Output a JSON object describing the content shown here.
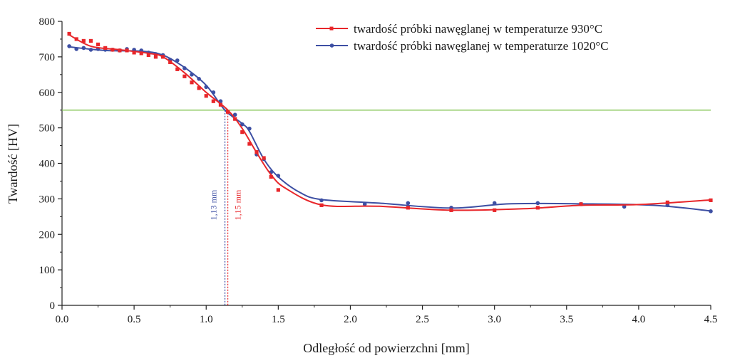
{
  "chart_data": {
    "type": "line",
    "title": "",
    "xlabel": "Odległość od powierzchni [mm]",
    "ylabel": "Twardość [HV]",
    "xlim": [
      0.0,
      4.5
    ],
    "ylim": [
      0,
      800
    ],
    "xticks": [
      "0.0",
      "0.5",
      "1.0",
      "1.5",
      "2.0",
      "2.5",
      "3.0",
      "3.5",
      "4.0",
      "4.5"
    ],
    "yticks": [
      "0",
      "100",
      "200",
      "300",
      "400",
      "500",
      "600",
      "700",
      "800"
    ],
    "grid": false,
    "legend_position": "top-right",
    "reference_line": {
      "y": 550,
      "color": "#7cc24a"
    },
    "series": [
      {
        "name": "twardość próbki nawęglanej w temperaturze 930°C",
        "color": "#e8262a",
        "marker": "square",
        "points": [
          [
            0.05,
            765
          ],
          [
            0.1,
            750
          ],
          [
            0.15,
            745
          ],
          [
            0.2,
            745
          ],
          [
            0.25,
            735
          ],
          [
            0.3,
            725
          ],
          [
            0.35,
            720
          ],
          [
            0.4,
            718
          ],
          [
            0.45,
            718
          ],
          [
            0.5,
            712
          ],
          [
            0.55,
            710
          ],
          [
            0.6,
            705
          ],
          [
            0.65,
            700
          ],
          [
            0.7,
            700
          ],
          [
            0.75,
            685
          ],
          [
            0.8,
            665
          ],
          [
            0.85,
            645
          ],
          [
            0.9,
            628
          ],
          [
            0.95,
            612
          ],
          [
            1.0,
            590
          ],
          [
            1.05,
            575
          ],
          [
            1.1,
            565
          ],
          [
            1.15,
            545
          ],
          [
            1.2,
            525
          ],
          [
            1.25,
            488
          ],
          [
            1.3,
            455
          ],
          [
            1.35,
            432
          ],
          [
            1.4,
            415
          ],
          [
            1.45,
            362
          ],
          [
            1.5,
            325
          ],
          [
            1.8,
            282
          ],
          [
            2.4,
            275
          ],
          [
            2.7,
            268
          ],
          [
            3.0,
            268
          ],
          [
            3.3,
            275
          ],
          [
            3.6,
            285
          ],
          [
            4.2,
            290
          ],
          [
            4.5,
            296
          ]
        ],
        "curve": [
          [
            0.05,
            762
          ],
          [
            0.2,
            730
          ],
          [
            0.4,
            720
          ],
          [
            0.6,
            710
          ],
          [
            0.7,
            700
          ],
          [
            0.85,
            655
          ],
          [
            1.0,
            600
          ],
          [
            1.15,
            550
          ],
          [
            1.25,
            498
          ],
          [
            1.35,
            430
          ],
          [
            1.45,
            368
          ],
          [
            1.55,
            330
          ],
          [
            1.8,
            283
          ],
          [
            2.2,
            279
          ],
          [
            2.7,
            268
          ],
          [
            3.2,
            272
          ],
          [
            3.6,
            282
          ],
          [
            4.0,
            284
          ],
          [
            4.5,
            297
          ]
        ],
        "annotation": {
          "text": "1,15 mm",
          "x": 1.15
        }
      },
      {
        "name": "twardość próbki nawęglanej w temperaturze 1020°C",
        "color": "#3d4fa3",
        "marker": "circle",
        "points": [
          [
            0.05,
            730
          ],
          [
            0.1,
            722
          ],
          [
            0.15,
            725
          ],
          [
            0.2,
            720
          ],
          [
            0.25,
            722
          ],
          [
            0.3,
            720
          ],
          [
            0.35,
            720
          ],
          [
            0.4,
            718
          ],
          [
            0.45,
            722
          ],
          [
            0.5,
            720
          ],
          [
            0.55,
            718
          ],
          [
            0.6,
            712
          ],
          [
            0.65,
            708
          ],
          [
            0.7,
            705
          ],
          [
            0.75,
            692
          ],
          [
            0.8,
            690
          ],
          [
            0.85,
            668
          ],
          [
            0.9,
            650
          ],
          [
            0.95,
            638
          ],
          [
            1.0,
            615
          ],
          [
            1.05,
            600
          ],
          [
            1.1,
            575
          ],
          [
            1.15,
            545
          ],
          [
            1.2,
            537
          ],
          [
            1.25,
            510
          ],
          [
            1.3,
            498
          ],
          [
            1.35,
            425
          ],
          [
            1.4,
            412
          ],
          [
            1.45,
            375
          ],
          [
            1.5,
            365
          ],
          [
            1.8,
            296
          ],
          [
            2.1,
            285
          ],
          [
            2.4,
            288
          ],
          [
            2.7,
            275
          ],
          [
            3.0,
            288
          ],
          [
            3.3,
            288
          ],
          [
            3.6,
            285
          ],
          [
            3.9,
            278
          ],
          [
            4.2,
            282
          ],
          [
            4.5,
            265
          ]
        ],
        "curve": [
          [
            0.05,
            728
          ],
          [
            0.3,
            718
          ],
          [
            0.55,
            716
          ],
          [
            0.7,
            705
          ],
          [
            0.85,
            670
          ],
          [
            1.0,
            620
          ],
          [
            1.13,
            550
          ],
          [
            1.25,
            512
          ],
          [
            1.3,
            490
          ],
          [
            1.4,
            412
          ],
          [
            1.5,
            362
          ],
          [
            1.65,
            318
          ],
          [
            1.8,
            298
          ],
          [
            2.2,
            288
          ],
          [
            2.7,
            274
          ],
          [
            3.1,
            286
          ],
          [
            3.6,
            286
          ],
          [
            4.1,
            282
          ],
          [
            4.5,
            266
          ]
        ],
        "annotation": {
          "text": "1,13 mm",
          "x": 1.13
        }
      }
    ]
  }
}
